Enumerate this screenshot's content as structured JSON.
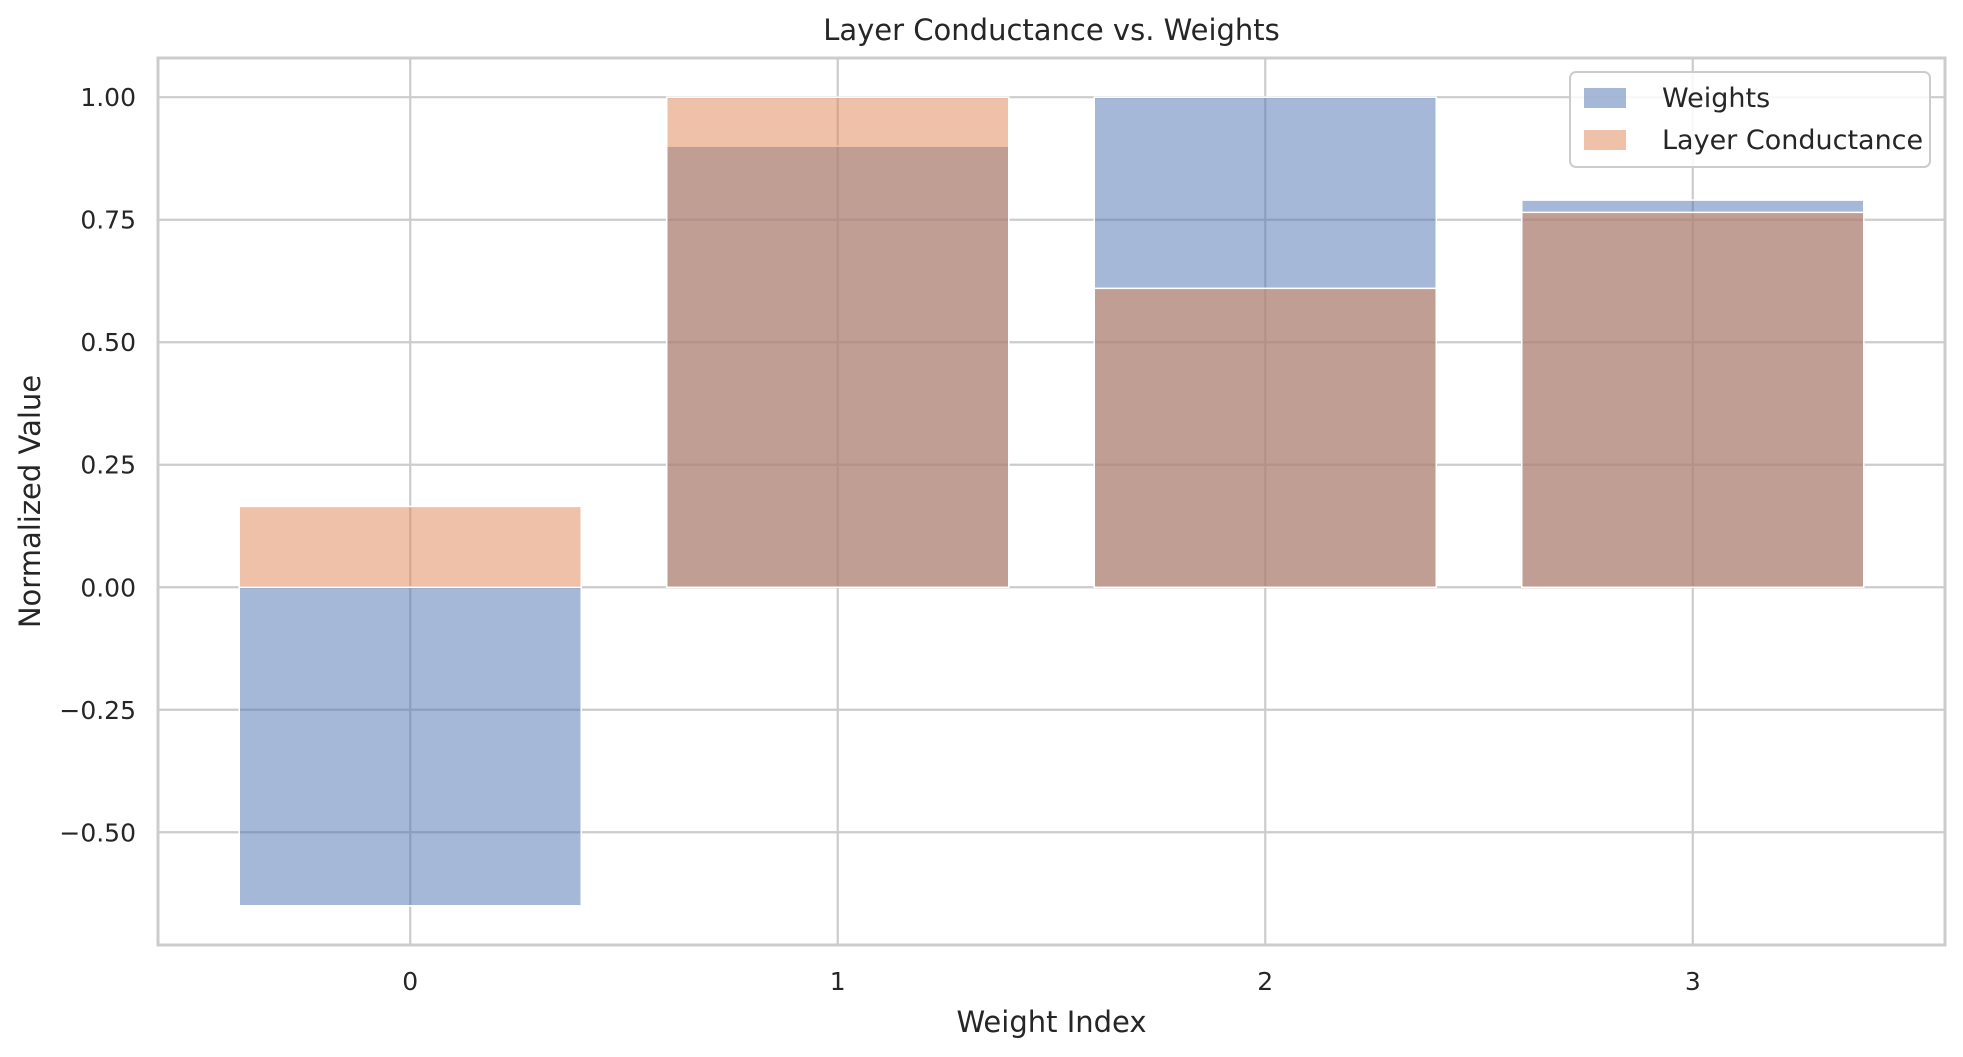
{
  "chart_data": {
    "type": "bar",
    "title": "Layer Conductance vs. Weights",
    "xlabel": "Weight Index",
    "ylabel": "Normalized Value",
    "categories": [
      "0",
      "1",
      "2",
      "3"
    ],
    "series": [
      {
        "name": "Weights",
        "color": "#4c72b0",
        "opacity": 0.5,
        "values": [
          -0.65,
          0.9,
          1.0,
          0.79
        ]
      },
      {
        "name": "Layer Conductance",
        "color": "#dd8452",
        "opacity": 0.5,
        "values": [
          0.165,
          1.0,
          0.61,
          0.765
        ]
      }
    ],
    "ylim": [
      -0.73,
      1.08
    ],
    "yticks": [
      -0.5,
      -0.25,
      0.0,
      0.25,
      0.5,
      0.75,
      1.0
    ],
    "ytick_labels": [
      "−0.50",
      "−0.25",
      "0.00",
      "0.25",
      "0.50",
      "0.75",
      "1.00"
    ],
    "xlim": [
      -0.59,
      3.59
    ],
    "grid": true,
    "legend": "top-right"
  }
}
